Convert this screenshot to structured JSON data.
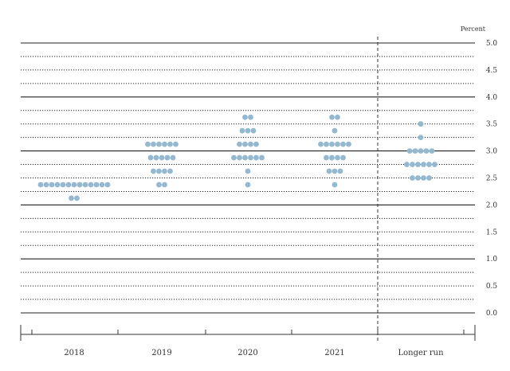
{
  "chart_data": {
    "type": "scatter",
    "title": "",
    "xlabel": "",
    "ylabel": "",
    "unit": "Percent",
    "categories": [
      "2018",
      "2019",
      "2020",
      "2021",
      "Longer run"
    ],
    "ylim": [
      0,
      5
    ],
    "yticks": [
      "0.0",
      "0.5",
      "1.0",
      "1.5",
      "2.0",
      "2.5",
      "3.0",
      "3.5",
      "4.0",
      "4.5",
      "5.0"
    ],
    "grid": true,
    "legend": "none",
    "dot_color": "#95b8d1",
    "grid_color": "#222222",
    "series": [
      {
        "category": "2018",
        "points": [
          {
            "y": 2.375,
            "count": 13
          },
          {
            "y": 2.125,
            "count": 2
          }
        ]
      },
      {
        "category": "2019",
        "points": [
          {
            "y": 3.125,
            "count": 6
          },
          {
            "y": 2.875,
            "count": 5
          },
          {
            "y": 2.625,
            "count": 4
          },
          {
            "y": 2.375,
            "count": 2
          }
        ]
      },
      {
        "category": "2020",
        "points": [
          {
            "y": 3.625,
            "count": 2
          },
          {
            "y": 3.375,
            "count": 3
          },
          {
            "y": 3.125,
            "count": 4
          },
          {
            "y": 2.875,
            "count": 6
          },
          {
            "y": 2.625,
            "count": 1
          },
          {
            "y": 2.375,
            "count": 1
          }
        ]
      },
      {
        "category": "2021",
        "points": [
          {
            "y": 3.625,
            "count": 2
          },
          {
            "y": 3.375,
            "count": 1
          },
          {
            "y": 3.125,
            "count": 6
          },
          {
            "y": 2.875,
            "count": 4
          },
          {
            "y": 2.625,
            "count": 3
          },
          {
            "y": 2.375,
            "count": 1
          }
        ]
      },
      {
        "category": "Longer run",
        "points": [
          {
            "y": 3.5,
            "count": 1
          },
          {
            "y": 3.25,
            "count": 1
          },
          {
            "y": 3.0,
            "count": 5
          },
          {
            "y": 2.75,
            "count": 6
          },
          {
            "y": 2.5,
            "count": 4
          }
        ]
      }
    ]
  }
}
